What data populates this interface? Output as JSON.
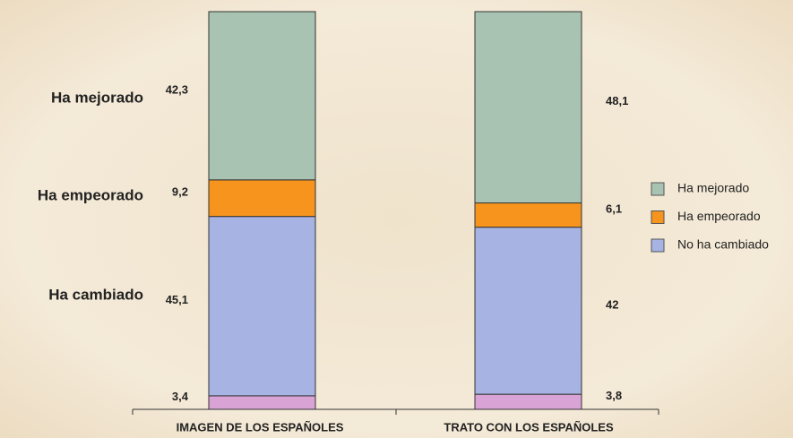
{
  "chart_data": {
    "type": "stacked-bar",
    "categories": [
      "IMAGEN DE LOS ESPAÑOLES",
      "TRATO CON LOS ESPAÑOLES"
    ],
    "series": [
      {
        "color": "#d9a3d6",
        "values": [
          3.4,
          3.8
        ],
        "value_labels": [
          "3,4",
          "3,8"
        ]
      },
      {
        "name": "No ha cambiado",
        "color": "#a6b3e3",
        "values": [
          45.1,
          42
        ],
        "value_labels": [
          "45,1",
          "42"
        ]
      },
      {
        "name": "Ha empeorado",
        "color": "#f7941d",
        "values": [
          9.2,
          6.1
        ],
        "value_labels": [
          "9,2",
          "6,1"
        ]
      },
      {
        "name": "Ha mejorado",
        "color": "#a9c3b2",
        "values": [
          42.3,
          48.1
        ],
        "value_labels": [
          "42,3",
          "48,1"
        ]
      }
    ],
    "annotations": [
      "Ha mejorado",
      "Ha empeorado",
      "Ha cambiado"
    ],
    "ylim": [
      0,
      100
    ]
  }
}
